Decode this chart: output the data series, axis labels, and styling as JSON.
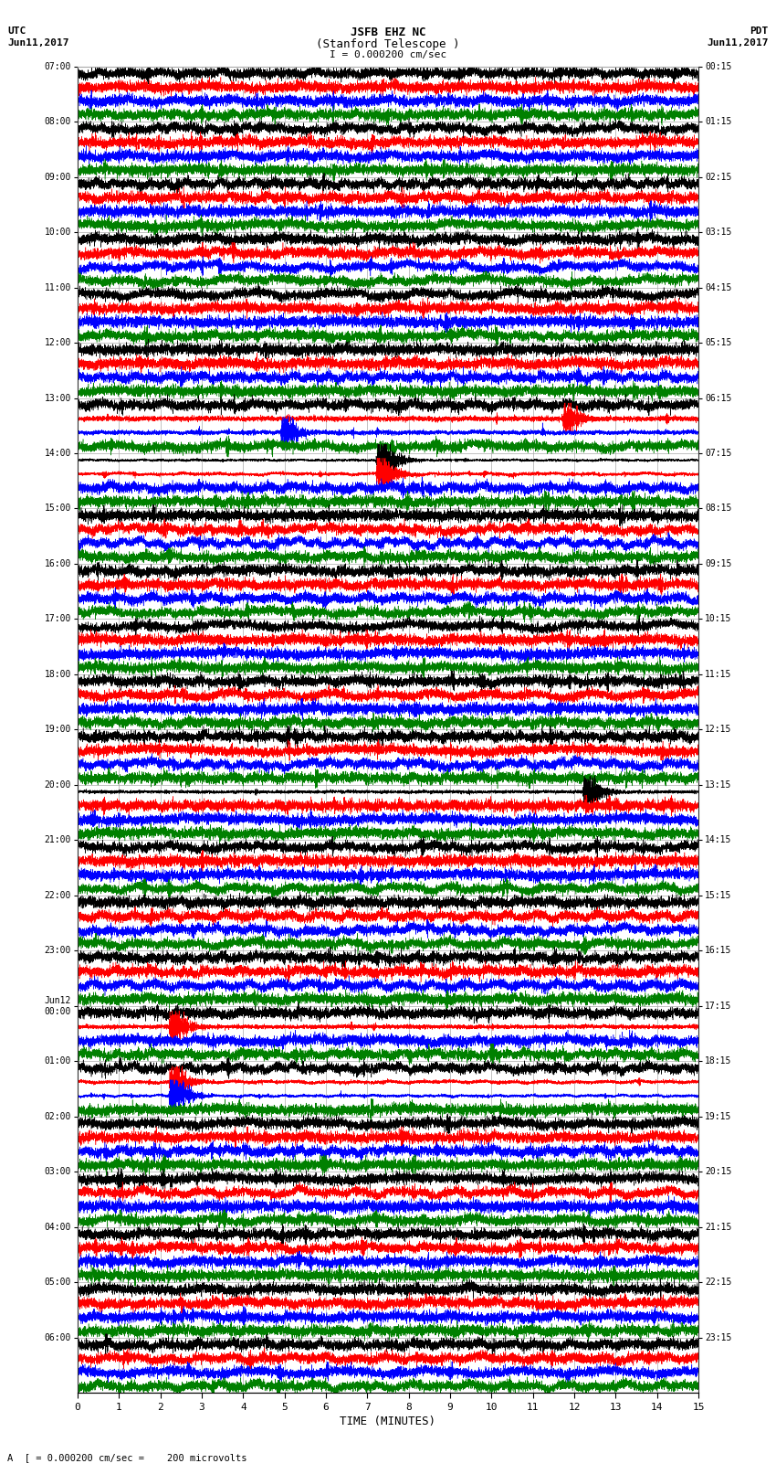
{
  "title_line1": "JSFB EHZ NC",
  "title_line2": "(Stanford Telescope )",
  "scale_label": "I = 0.000200 cm/sec",
  "left_header_line1": "UTC",
  "left_header_line2": "Jun11,2017",
  "right_header_line1": "PDT",
  "right_header_line2": "Jun11,2017",
  "xlabel": "TIME (MINUTES)",
  "footer": "A  [ = 0.000200 cm/sec =    200 microvolts",
  "utc_times": [
    "07:00",
    "08:00",
    "09:00",
    "10:00",
    "11:00",
    "12:00",
    "13:00",
    "14:00",
    "15:00",
    "16:00",
    "17:00",
    "18:00",
    "19:00",
    "20:00",
    "21:00",
    "22:00",
    "23:00",
    "Jun12\n00:00",
    "01:00",
    "02:00",
    "03:00",
    "04:00",
    "05:00",
    "06:00"
  ],
  "pdt_times": [
    "00:15",
    "01:15",
    "02:15",
    "03:15",
    "04:15",
    "05:15",
    "06:15",
    "07:15",
    "08:15",
    "09:15",
    "10:15",
    "11:15",
    "12:15",
    "13:15",
    "14:15",
    "15:15",
    "16:15",
    "17:15",
    "18:15",
    "19:15",
    "20:15",
    "21:15",
    "22:15",
    "23:15"
  ],
  "colors": [
    "black",
    "red",
    "blue",
    "green"
  ],
  "n_rows": 24,
  "traces_per_row": 4,
  "time_minutes": 15,
  "samples": 9000,
  "background": "white",
  "base_noise": 0.28,
  "grid_color": "#aaaaaa",
  "linewidth": 0.35
}
